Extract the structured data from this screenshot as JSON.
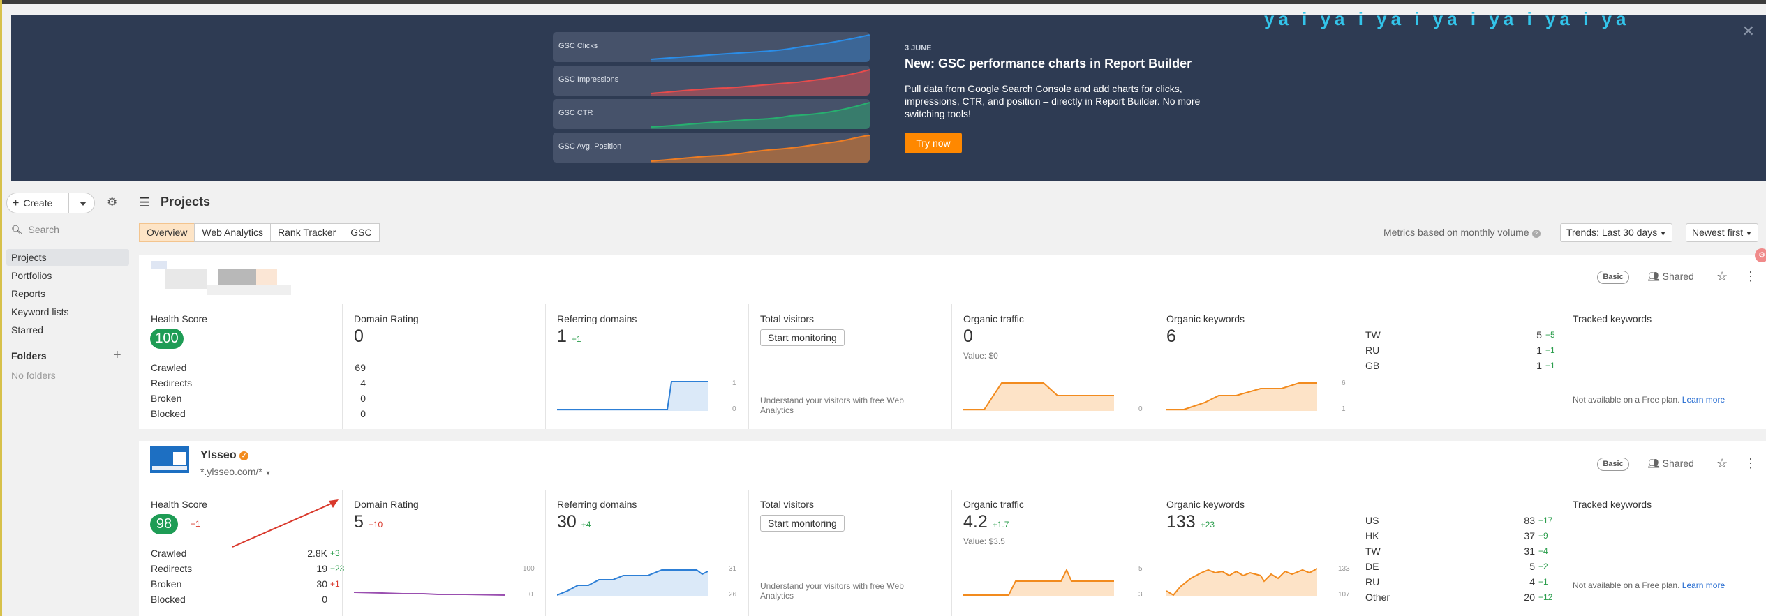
{
  "banner": {
    "watermark": "ya  i  ya  i  ya  i  ya  i  ya  i  ya  i  ya",
    "cards": [
      "GSC Clicks",
      "GSC Impressions",
      "GSC CTR",
      "GSC Avg. Position"
    ],
    "date": "3 JUNE",
    "title": "New: GSC performance charts in Report Builder",
    "description": "Pull data from Google Search Console and add charts for clicks, impressions, CTR, and position – directly in Report Builder. No more switching tools!",
    "cta": "Try now",
    "colors": {
      "clicks": "#2a8de8",
      "impressions": "#e84b4b",
      "ctr": "#27b06f",
      "position": "#ef7d22",
      "cta": "#ff8800"
    }
  },
  "sidebar": {
    "create_label": "Create",
    "search_placeholder": "Search",
    "items": [
      {
        "label": "Projects",
        "active": true
      },
      {
        "label": "Portfolios"
      },
      {
        "label": "Reports"
      },
      {
        "label": "Keyword lists"
      },
      {
        "label": "Starred"
      }
    ],
    "folders_label": "Folders",
    "no_folders": "No folders"
  },
  "header": {
    "title": "Projects",
    "tabs": [
      "Overview",
      "Web Analytics",
      "Rank Tracker",
      "GSC"
    ],
    "metrics_note": "Metrics based on monthly volume",
    "trends_dropdown": "Trends: Last 30 days",
    "sort_dropdown": "Newest first"
  },
  "projects": [
    {
      "badge": "Basic",
      "shared": "Shared",
      "health_label": "Health Score",
      "health": "100",
      "site_rows": [
        {
          "k": "Crawled",
          "v": "69"
        },
        {
          "k": "Redirects",
          "v": "4"
        },
        {
          "k": "Broken",
          "v": "0"
        },
        {
          "k": "Blocked",
          "v": "0"
        }
      ],
      "dr_label": "Domain Rating",
      "dr": "0",
      "rd_label": "Referring domains",
      "rd": "1",
      "rd_delta": "+1",
      "rd_axis": [
        "1",
        "0"
      ],
      "tv_label": "Total visitors",
      "tv_button": "Start monitoring",
      "tv_note": "Understand your visitors with free Web Analytics",
      "ot_label": "Organic traffic",
      "ot": "0",
      "ot_value": "Value: $0",
      "ot_axis": [
        "0"
      ],
      "ok_label": "Organic keywords",
      "ok": "6",
      "ok_axis": [
        "6",
        "1"
      ],
      "countries": [
        {
          "c": "TW",
          "v": "5",
          "d": "+5"
        },
        {
          "c": "RU",
          "v": "1",
          "d": "+1"
        },
        {
          "c": "GB",
          "v": "1",
          "d": "+1"
        }
      ],
      "tk_label": "Tracked keywords",
      "tk_note": "Not available on a Free plan.",
      "learn_more": "Learn more"
    },
    {
      "name": "Ylsseo",
      "url": "*.ylsseo.com/*",
      "badge": "Basic",
      "shared": "Shared",
      "health_label": "Health Score",
      "health": "98",
      "health_delta": "−1",
      "site_rows": [
        {
          "k": "Crawled",
          "v": "2.8K",
          "d": "+3",
          "dc": "pos"
        },
        {
          "k": "Redirects",
          "v": "19",
          "d": "−23",
          "dc": "pos"
        },
        {
          "k": "Broken",
          "v": "30",
          "d": "+1",
          "dc": "neg"
        },
        {
          "k": "Blocked",
          "v": "0",
          "d": "",
          "dc": ""
        }
      ],
      "dr_label": "Domain Rating",
      "dr": "5",
      "dr_delta": "−10",
      "dr_axis": [
        "100",
        "0"
      ],
      "rd_label": "Referring domains",
      "rd": "30",
      "rd_delta": "+4",
      "rd_axis": [
        "31",
        "26"
      ],
      "tv_label": "Total visitors",
      "tv_button": "Start monitoring",
      "tv_note": "Understand your visitors with free Web Analytics",
      "ot_label": "Organic traffic",
      "ot": "4.2",
      "ot_delta": "+1.7",
      "ot_value": "Value: $3.5",
      "ot_axis": [
        "5",
        "3"
      ],
      "ok_label": "Organic keywords",
      "ok": "133",
      "ok_delta": "+23",
      "ok_axis": [
        "133",
        "107"
      ],
      "countries": [
        {
          "c": "US",
          "v": "83",
          "d": "+17"
        },
        {
          "c": "HK",
          "v": "37",
          "d": "+9"
        },
        {
          "c": "TW",
          "v": "31",
          "d": "+4"
        },
        {
          "c": "DE",
          "v": "5",
          "d": "+2"
        },
        {
          "c": "RU",
          "v": "4",
          "d": "+1"
        },
        {
          "c": "Other",
          "v": "20",
          "d": "+12"
        }
      ],
      "tk_label": "Tracked keywords",
      "tk_note": "Not available on a Free plan.",
      "learn_more": "Learn more"
    }
  ]
}
